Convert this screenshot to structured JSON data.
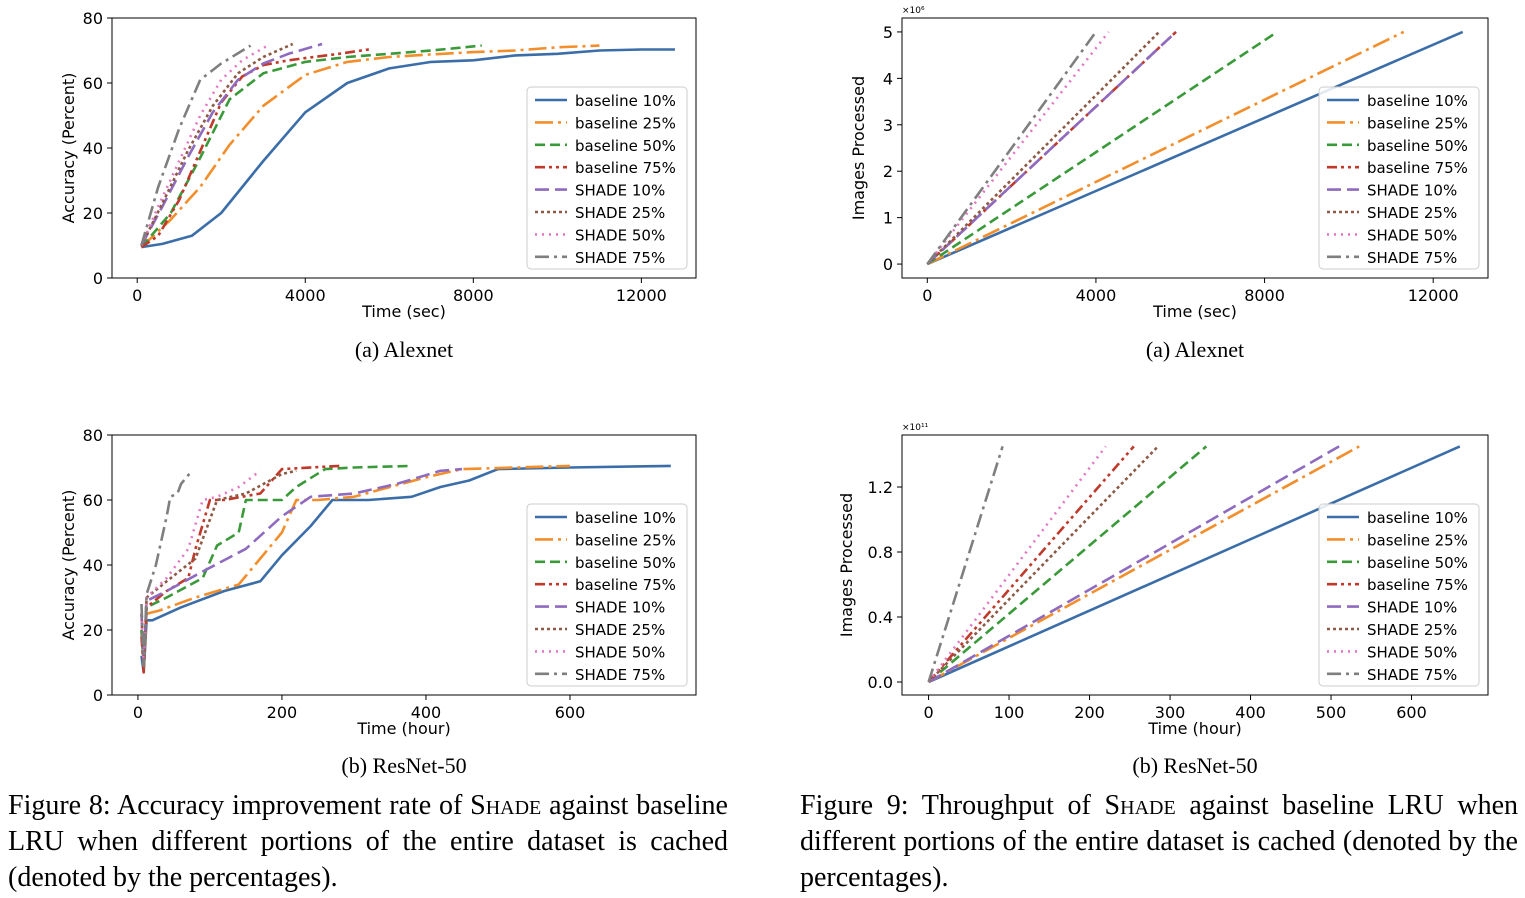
{
  "captions": {
    "fig8_prefix": "Figure 8:  Accuracy improvement rate of ",
    "fig8_shade": "Shade",
    "fig8_suffix": " against baseline LRU when different portions of the entire dataset is cached (denoted by the percentages).",
    "fig9_prefix": "Figure 9:  Throughput of ",
    "fig9_shade": "Shade",
    "fig9_suffix": " against baseline LRU when different portions of the entire dataset is cached (denoted by the percentages)."
  },
  "series_names": [
    "baseline 10%",
    "baseline 25%",
    "baseline 50%",
    "baseline 75%",
    "SHADE 10%",
    "SHADE 25%",
    "SHADE 50%",
    "SHADE 75%"
  ],
  "series_colors": [
    "#3b6ea8",
    "#f28e2b",
    "#3a9a3a",
    "#c0392b",
    "#8e6bbf",
    "#8c5a45",
    "#e377c2",
    "#7f7f7f"
  ],
  "chart_data": [
    {
      "type": "line",
      "subcaption": "(a)  Alexnet",
      "xlabel": "Time (sec)",
      "ylabel": "Accuracy (Percent)",
      "multiplier": "",
      "xlim": [
        -600,
        13300
      ],
      "ylim": [
        0,
        80
      ],
      "xticks": [
        0,
        4000,
        8000,
        12000
      ],
      "yticks": [
        0,
        20,
        40,
        60,
        80
      ],
      "xtick_labels": [
        "0",
        "4000",
        "8000",
        "12000"
      ],
      "ytick_labels": [
        "0",
        "20",
        "40",
        "60",
        "80"
      ],
      "legend_position": "right",
      "series": [
        {
          "name": "baseline 10%",
          "x": [
            100,
            600,
            1300,
            2000,
            3000,
            4000,
            5000,
            6000,
            7000,
            8000,
            9000,
            10000,
            11000,
            12000,
            12800
          ],
          "y": [
            9.5,
            10.5,
            13,
            20,
            36,
            51,
            60,
            64.5,
            66.5,
            67,
            68.5,
            69,
            70,
            70.3,
            70.3
          ]
        },
        {
          "name": "baseline 25%",
          "x": [
            100,
            800,
            1500,
            2200,
            3000,
            4000,
            5000,
            6000,
            7000,
            8000,
            9000,
            10000,
            11000
          ],
          "y": [
            9.5,
            18,
            28,
            41,
            53,
            62.5,
            66.5,
            68,
            68.8,
            69.5,
            70,
            71,
            71.5
          ]
        },
        {
          "name": "baseline 50%",
          "x": [
            100,
            800,
            1500,
            2200,
            3000,
            4000,
            5000,
            6000,
            7000,
            8200
          ],
          "y": [
            9.5,
            20,
            37,
            55,
            63,
            66.5,
            68,
            69,
            70,
            71.5
          ]
        },
        {
          "name": "baseline 75%",
          "x": [
            100,
            500,
            1000,
            1500,
            2000,
            2500,
            3000,
            3600,
            4200,
            4800,
            5600
          ],
          "y": [
            9.5,
            13,
            24,
            39,
            54,
            62,
            65.5,
            67,
            68,
            69,
            70.5
          ]
        },
        {
          "name": "SHADE 10%",
          "x": [
            100,
            600,
            1200,
            1800,
            2400,
            3000,
            3600,
            4400
          ],
          "y": [
            10,
            22,
            37,
            51,
            61,
            66,
            69,
            72
          ]
        },
        {
          "name": "SHADE 25%",
          "x": [
            100,
            600,
            1200,
            1800,
            2400,
            3000,
            3700
          ],
          "y": [
            10,
            23,
            39,
            53,
            63,
            68,
            72
          ]
        },
        {
          "name": "SHADE 50%",
          "x": [
            100,
            500,
            1000,
            1500,
            2000,
            2500,
            3100
          ],
          "y": [
            10,
            22,
            36,
            50,
            61,
            67,
            71.5
          ]
        },
        {
          "name": "SHADE 75%",
          "x": [
            100,
            500,
            1000,
            1500,
            2000,
            2700
          ],
          "y": [
            10,
            28,
            46,
            61,
            66,
            71.5
          ]
        }
      ]
    },
    {
      "type": "line",
      "subcaption": "(a)  Alexnet",
      "xlabel": "Time (sec)",
      "ylabel": "Images Processed",
      "multiplier": "×10⁶",
      "xlim": [
        -600,
        13300
      ],
      "ylim": [
        -0.3,
        5.3
      ],
      "xticks": [
        0,
        4000,
        8000,
        12000
      ],
      "yticks": [
        0,
        1,
        2,
        3,
        4,
        5
      ],
      "xtick_labels": [
        "0",
        "4000",
        "8000",
        "12000"
      ],
      "ytick_labels": [
        "0",
        "1",
        "2",
        "3",
        "4",
        "5"
      ],
      "legend_position": "right",
      "series": [
        {
          "name": "baseline 10%",
          "x": [
            0,
            12700
          ],
          "y": [
            0,
            5
          ]
        },
        {
          "name": "baseline 25%",
          "x": [
            0,
            11300
          ],
          "y": [
            0,
            5
          ]
        },
        {
          "name": "baseline 50%",
          "x": [
            0,
            8300
          ],
          "y": [
            0,
            5
          ]
        },
        {
          "name": "baseline 75%",
          "x": [
            0,
            5900
          ],
          "y": [
            0,
            5
          ]
        },
        {
          "name": "SHADE 10%",
          "x": [
            0,
            5900
          ],
          "y": [
            0,
            5
          ]
        },
        {
          "name": "SHADE 25%",
          "x": [
            0,
            5500
          ],
          "y": [
            0,
            5
          ]
        },
        {
          "name": "SHADE 50%",
          "x": [
            0,
            4300
          ],
          "y": [
            0,
            5
          ]
        },
        {
          "name": "SHADE 75%",
          "x": [
            0,
            4000
          ],
          "y": [
            0,
            5
          ]
        }
      ]
    },
    {
      "type": "line",
      "subcaption": "(b)  ResNet-50",
      "xlabel": "Time (hour)",
      "ylabel": "Accuracy (Percent)",
      "multiplier": "",
      "xlim": [
        -36,
        775
      ],
      "ylim": [
        0,
        80
      ],
      "xticks": [
        0,
        200,
        400,
        600
      ],
      "yticks": [
        0,
        20,
        40,
        60,
        80
      ],
      "xtick_labels": [
        "0",
        "200",
        "400",
        "600"
      ],
      "ytick_labels": [
        "0",
        "20",
        "40",
        "60",
        "80"
      ],
      "legend_position": "right",
      "series": [
        {
          "name": "baseline 10%",
          "x": [
            5,
            8,
            12,
            20,
            60,
            120,
            170,
            200,
            240,
            270,
            320,
            380,
            420,
            460,
            500,
            600,
            740
          ],
          "y": [
            12,
            7,
            23,
            23,
            27,
            32,
            35,
            43,
            52,
            60,
            60,
            61,
            64,
            66,
            69.5,
            70,
            70.5
          ]
        },
        {
          "name": "baseline 25%",
          "x": [
            5,
            8,
            12,
            30,
            80,
            140,
            170,
            200,
            220,
            250,
            300,
            350,
            400,
            450,
            600
          ],
          "y": [
            20,
            8,
            25,
            26,
            30,
            34,
            42,
            50,
            60,
            60,
            61,
            64,
            67,
            69.5,
            70.5
          ]
        },
        {
          "name": "baseline 50%",
          "x": [
            5,
            8,
            12,
            40,
            90,
            110,
            140,
            150,
            200,
            220,
            260,
            300,
            380
          ],
          "y": [
            20,
            8,
            27,
            30,
            36,
            46,
            50,
            60,
            60,
            64,
            69.5,
            70,
            70.5
          ]
        },
        {
          "name": "baseline 75%",
          "x": [
            5,
            8,
            12,
            40,
            70,
            80,
            100,
            120,
            170,
            200,
            280
          ],
          "y": [
            18,
            7,
            27,
            32,
            36,
            45,
            60,
            60,
            62,
            69.5,
            70.5
          ]
        },
        {
          "name": "SHADE 10%",
          "x": [
            5,
            8,
            12,
            40,
            90,
            150,
            200,
            240,
            300,
            360,
            420,
            450
          ],
          "y": [
            25,
            9,
            29,
            32,
            38,
            45,
            55,
            61,
            62,
            65,
            69,
            69.5
          ]
        },
        {
          "name": "SHADE 25%",
          "x": [
            5,
            8,
            12,
            40,
            80,
            110,
            150,
            200,
            220
          ],
          "y": [
            25,
            9,
            30,
            35,
            42,
            60,
            62,
            68,
            69
          ]
        },
        {
          "name": "SHADE 50%",
          "x": [
            5,
            8,
            12,
            40,
            70,
            90,
            110,
            140,
            170
          ],
          "y": [
            25,
            9,
            30,
            36,
            45,
            60,
            61,
            64,
            69
          ]
        },
        {
          "name": "SHADE 75%",
          "x": [
            5,
            8,
            12,
            25,
            40,
            45,
            55,
            60,
            75
          ],
          "y": [
            28,
            9,
            31,
            40,
            55,
            61,
            62,
            65,
            69
          ]
        }
      ]
    },
    {
      "type": "line",
      "subcaption": "(b)  ResNet-50",
      "xlabel": "Time (hour)",
      "ylabel": "Images Processed",
      "multiplier": "×10¹¹",
      "xlim": [
        -33,
        695
      ],
      "ylim": [
        -0.08,
        1.52
      ],
      "xticks": [
        0,
        100,
        200,
        300,
        400,
        500,
        600
      ],
      "yticks": [
        0.0,
        0.4,
        0.8,
        1.2
      ],
      "xtick_labels": [
        "0",
        "100",
        "200",
        "300",
        "400",
        "500",
        "600"
      ],
      "ytick_labels": [
        "0.0",
        "0.4",
        "0.8",
        "1.2"
      ],
      "legend_position": "right",
      "series": [
        {
          "name": "baseline 10%",
          "x": [
            0,
            660
          ],
          "y": [
            0,
            1.45
          ]
        },
        {
          "name": "baseline 25%",
          "x": [
            0,
            535
          ],
          "y": [
            0,
            1.45
          ]
        },
        {
          "name": "baseline 50%",
          "x": [
            0,
            345
          ],
          "y": [
            0,
            1.45
          ]
        },
        {
          "name": "baseline 75%",
          "x": [
            0,
            255
          ],
          "y": [
            0,
            1.45
          ]
        },
        {
          "name": "SHADE 10%",
          "x": [
            0,
            510
          ],
          "y": [
            0,
            1.45
          ]
        },
        {
          "name": "SHADE 25%",
          "x": [
            0,
            285
          ],
          "y": [
            0,
            1.45
          ]
        },
        {
          "name": "SHADE 50%",
          "x": [
            0,
            220
          ],
          "y": [
            0,
            1.45
          ]
        },
        {
          "name": "SHADE 75%",
          "x": [
            0,
            92
          ],
          "y": [
            0,
            1.45
          ]
        }
      ]
    }
  ]
}
